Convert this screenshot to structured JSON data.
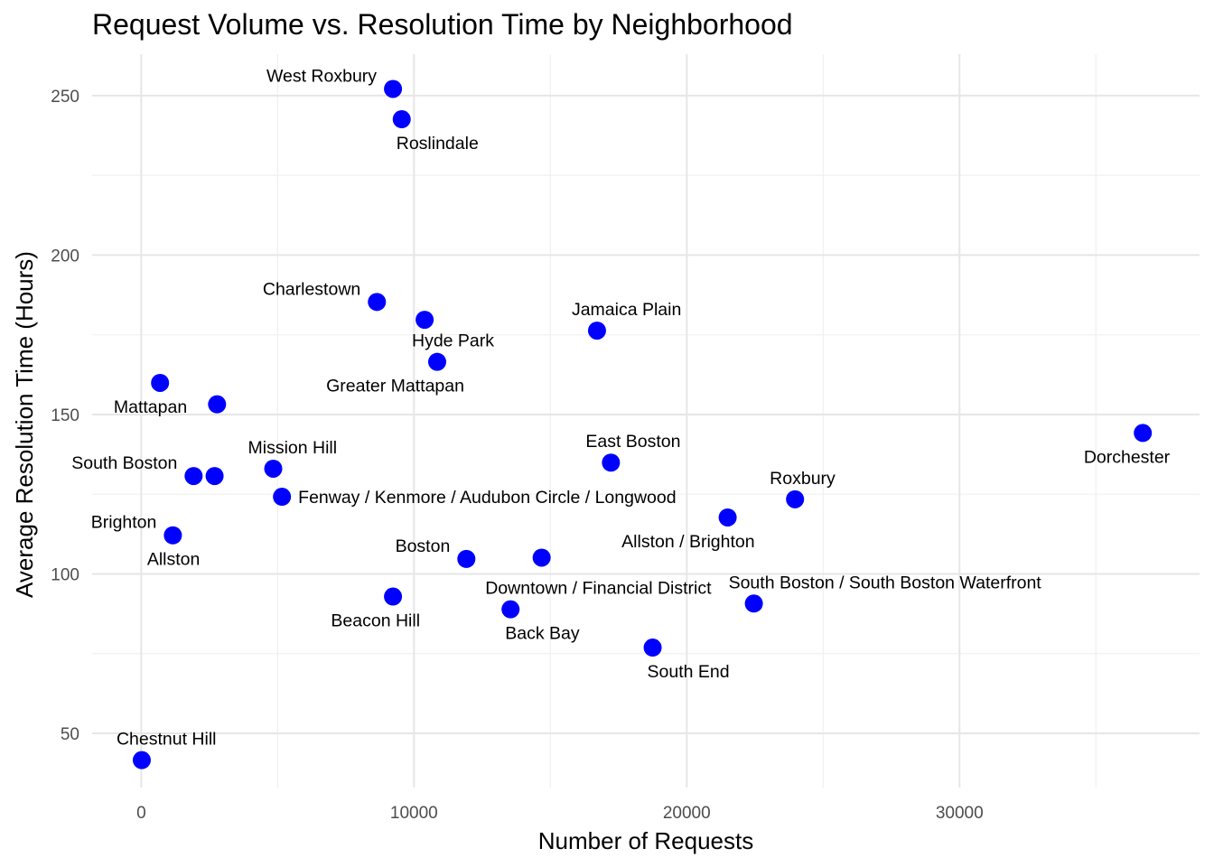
{
  "chart_data": {
    "type": "scatter",
    "title": "Request Volume vs. Resolution Time by Neighborhood",
    "xlabel": "Number of Requests",
    "ylabel": "Average Resolution Time (Hours)",
    "xlim": [
      -1800,
      38800
    ],
    "ylim": [
      33,
      263
    ],
    "x_ticks": [
      0,
      10000,
      20000,
      30000
    ],
    "y_ticks": [
      50,
      100,
      150,
      200,
      250
    ],
    "x_tick_labels": [
      "0",
      "10000",
      "20000",
      "30000"
    ],
    "y_tick_labels": [
      "50",
      "100",
      "150",
      "200",
      "250"
    ],
    "grid": true,
    "point_color": "#0000ff",
    "points": [
      {
        "label": "West Roxbury",
        "x": 9230,
        "y": 252.1,
        "label_pos": "above-left"
      },
      {
        "label": "Roslindale",
        "x": 9550,
        "y": 242.6,
        "label_pos": "below-right"
      },
      {
        "label": "Charlestown",
        "x": 8640,
        "y": 185.3,
        "label_pos": "above-left"
      },
      {
        "label": "",
        "x": 10390,
        "y": 179.7,
        "label_pos": "none"
      },
      {
        "label": "Jamaica Plain",
        "x": 16710,
        "y": 176.3,
        "label_pos": "above-right"
      },
      {
        "label": "Hyde Park",
        "x": 10850,
        "y": 166.5,
        "label_pos": "above-right"
      },
      {
        "label": "Greater Mattapan",
        "x": 10850,
        "y": 166.5,
        "label_pos": "below-left"
      },
      {
        "label": "Mattapan",
        "x": 690,
        "y": 159.9,
        "label_pos": "below-left"
      },
      {
        "label": "",
        "x": 2780,
        "y": 153.2,
        "label_pos": "none"
      },
      {
        "label": "Dorchester",
        "x": 36720,
        "y": 144.2,
        "label_pos": "below-left"
      },
      {
        "label": "East Boston",
        "x": 17220,
        "y": 134.9,
        "label_pos": "above-right"
      },
      {
        "label": "Mission Hill",
        "x": 4840,
        "y": 133.0,
        "label_pos": "above-right"
      },
      {
        "label": "South Boston",
        "x": 1920,
        "y": 130.7,
        "label_pos": "above-left"
      },
      {
        "label": "",
        "x": 2690,
        "y": 130.7,
        "label_pos": "none"
      },
      {
        "label": "Fenway / Kenmore / Audubon Circle / Longwood",
        "x": 5160,
        "y": 124.2,
        "label_pos": "right"
      },
      {
        "label": "Roxbury",
        "x": 23970,
        "y": 123.4,
        "label_pos": "above-right"
      },
      {
        "label": "Allston / Brighton",
        "x": 21500,
        "y": 117.7,
        "label_pos": "below-left"
      },
      {
        "label": "Brighton",
        "x": 1160,
        "y": 112.1,
        "label_pos": "above-left"
      },
      {
        "label": "Allston",
        "x": 1160,
        "y": 112.1,
        "label_pos": "below-left"
      },
      {
        "label": "",
        "x": 14680,
        "y": 105.1,
        "label_pos": "none"
      },
      {
        "label": "Boston",
        "x": 11920,
        "y": 104.7,
        "label_pos": "above-left"
      },
      {
        "label": "Downtown / Financial District",
        "x": 13540,
        "y": 88.9,
        "label_pos": "above-right"
      },
      {
        "label": "Beacon Hill",
        "x": 9230,
        "y": 92.9,
        "label_pos": "below-left"
      },
      {
        "label": "South Boston / South Boston Waterfront",
        "x": 22460,
        "y": 90.7,
        "label_pos": "above-right"
      },
      {
        "label": "Back Bay",
        "x": 13540,
        "y": 88.9,
        "label_pos": "below-right"
      },
      {
        "label": "South End",
        "x": 18750,
        "y": 76.9,
        "label_pos": "below-right"
      },
      {
        "label": "Chestnut Hill",
        "x": 20,
        "y": 41.6,
        "label_pos": "above-right"
      }
    ]
  }
}
